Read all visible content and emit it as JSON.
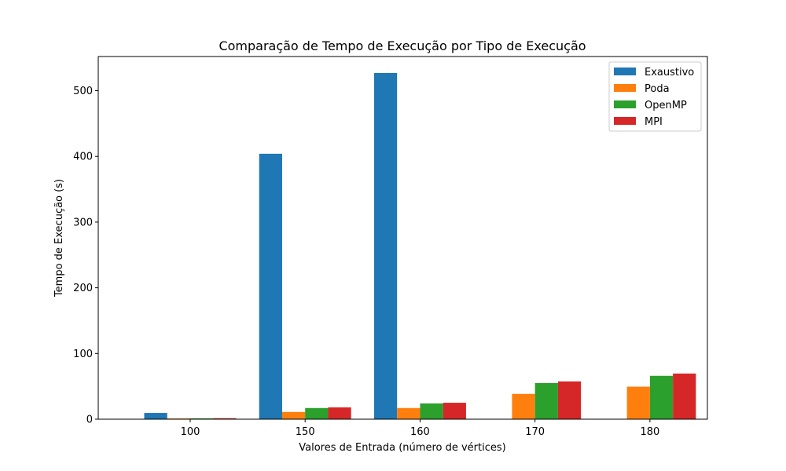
{
  "chart_data": {
    "type": "bar",
    "title": "Comparação de Tempo de Execução por Tipo de Execução",
    "xlabel": "Valores de Entrada (número de vértices)",
    "ylabel": "Tempo de Execução (s)",
    "categories": [
      "100",
      "150",
      "160",
      "170",
      "180"
    ],
    "ylim": [
      0,
      552
    ],
    "yticks": [
      0,
      100,
      200,
      300,
      400,
      500
    ],
    "grid": false,
    "legend_position": "top-right",
    "series": [
      {
        "name": "Exaustivo",
        "color": "#1f77b4",
        "values": [
          9.5,
          404,
          527,
          0,
          0
        ]
      },
      {
        "name": "Poda",
        "color": "#ff7f0e",
        "values": [
          1.2,
          11,
          17,
          38.5,
          49.5
        ]
      },
      {
        "name": "OpenMP",
        "color": "#2ca02c",
        "values": [
          1.3,
          17,
          24,
          55,
          66
        ]
      },
      {
        "name": "MPI",
        "color": "#d62728",
        "values": [
          1.5,
          18,
          25,
          57.5,
          69.5
        ]
      }
    ]
  }
}
